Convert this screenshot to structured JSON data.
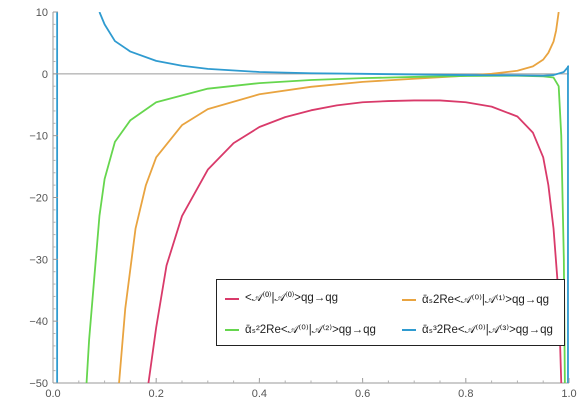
{
  "chart_data": {
    "type": "line",
    "title": "",
    "xlabel": "",
    "ylabel": "",
    "xlim": [
      0.0,
      1.0
    ],
    "ylim": [
      -50,
      10
    ],
    "x_ticks": [
      "0.0",
      "0.2",
      "0.4",
      "0.6",
      "0.8",
      "1.0"
    ],
    "y_ticks": [
      "10",
      "0",
      "−10",
      "−20",
      "−30",
      "−40",
      "−50"
    ],
    "grid": false,
    "legend_position": "bottom-right",
    "series": [
      {
        "name": "<𝒜⁽⁰⁾|𝒜⁽⁰⁾>qg→qg",
        "color": "#d93a6a",
        "points": [
          [
            0.185,
            -50
          ],
          [
            0.2,
            -41
          ],
          [
            0.22,
            -31
          ],
          [
            0.25,
            -23
          ],
          [
            0.3,
            -15.5
          ],
          [
            0.35,
            -11.2
          ],
          [
            0.4,
            -8.6
          ],
          [
            0.45,
            -7.0
          ],
          [
            0.5,
            -5.9
          ],
          [
            0.55,
            -5.1
          ],
          [
            0.6,
            -4.6
          ],
          [
            0.65,
            -4.4
          ],
          [
            0.7,
            -4.3
          ],
          [
            0.75,
            -4.3
          ],
          [
            0.8,
            -4.6
          ],
          [
            0.85,
            -5.3
          ],
          [
            0.9,
            -6.9
          ],
          [
            0.93,
            -9.5
          ],
          [
            0.95,
            -13.5
          ],
          [
            0.96,
            -18
          ],
          [
            0.97,
            -25
          ],
          [
            0.98,
            -36
          ],
          [
            0.985,
            -50
          ]
        ]
      },
      {
        "name": "ᾱₛ2Re<𝒜⁽⁰⁾|𝒜⁽¹⁾>qg→qg",
        "color": "#e9a440",
        "points": [
          [
            0.128,
            -50
          ],
          [
            0.14,
            -38
          ],
          [
            0.16,
            -25
          ],
          [
            0.18,
            -18
          ],
          [
            0.2,
            -13.5
          ],
          [
            0.25,
            -8.3
          ],
          [
            0.3,
            -5.7
          ],
          [
            0.4,
            -3.3
          ],
          [
            0.5,
            -2.1
          ],
          [
            0.6,
            -1.3
          ],
          [
            0.7,
            -0.8
          ],
          [
            0.8,
            -0.3
          ],
          [
            0.85,
            0.0
          ],
          [
            0.9,
            0.5
          ],
          [
            0.93,
            1.2
          ],
          [
            0.95,
            2.3
          ],
          [
            0.96,
            3.4
          ],
          [
            0.97,
            5.2
          ],
          [
            0.975,
            7.0
          ],
          [
            0.98,
            10
          ]
        ]
      },
      {
        "name": "ᾱₛ²2Re<𝒜⁽⁰⁾|𝒜⁽²⁾>qg→qg",
        "color": "#66d64e",
        "points": [
          [
            0.065,
            -50
          ],
          [
            0.07,
            -43
          ],
          [
            0.08,
            -33
          ],
          [
            0.09,
            -23
          ],
          [
            0.1,
            -17
          ],
          [
            0.12,
            -11
          ],
          [
            0.15,
            -7.5
          ],
          [
            0.2,
            -4.6
          ],
          [
            0.3,
            -2.4
          ],
          [
            0.4,
            -1.5
          ],
          [
            0.5,
            -1.0
          ],
          [
            0.6,
            -0.7
          ],
          [
            0.7,
            -0.5
          ],
          [
            0.8,
            -0.35
          ],
          [
            0.9,
            -0.3
          ],
          [
            0.95,
            -0.4
          ],
          [
            0.97,
            -0.6
          ],
          [
            0.98,
            -2.0
          ],
          [
            0.985,
            -10
          ],
          [
            0.99,
            -30
          ],
          [
            0.992,
            -50
          ]
        ]
      },
      {
        "name": "ᾱₛ³2Re<𝒜⁽⁰⁾|𝒜⁽³⁾>qg→qg",
        "color": "#2f9bd0",
        "points": [
          [
            0.09,
            10
          ],
          [
            0.1,
            8.0
          ],
          [
            0.12,
            5.3
          ],
          [
            0.15,
            3.6
          ],
          [
            0.2,
            2.1
          ],
          [
            0.25,
            1.3
          ],
          [
            0.3,
            0.8
          ],
          [
            0.4,
            0.3
          ],
          [
            0.5,
            0.1
          ],
          [
            0.6,
            0.0
          ],
          [
            0.7,
            -0.1
          ],
          [
            0.8,
            -0.2
          ],
          [
            0.9,
            -0.25
          ],
          [
            0.95,
            -0.3
          ],
          [
            0.97,
            -0.2
          ],
          [
            0.99,
            0.3
          ],
          [
            1.0,
            1.3
          ]
        ]
      }
    ]
  }
}
